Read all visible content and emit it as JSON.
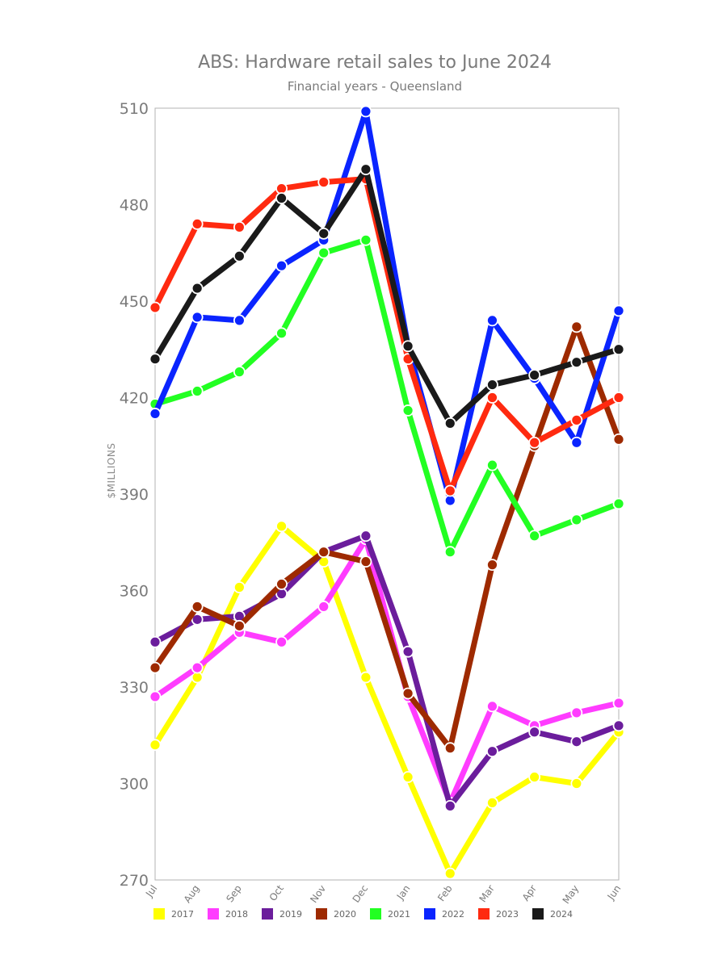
{
  "chart_data": {
    "type": "line",
    "title": "ABS: Hardware retail sales to June 2024",
    "subtitle": "Financial years - Queensland",
    "xlabel": "",
    "ylabel": "$MILLIONS",
    "categories": [
      "Jul",
      "Aug",
      "Sep",
      "Oct",
      "Nov",
      "Dec",
      "Jan",
      "Feb",
      "Mar",
      "Apr",
      "May",
      "Jun"
    ],
    "yticks": [
      270,
      300,
      330,
      360,
      390,
      420,
      450,
      480,
      510
    ],
    "ylim": [
      270,
      510
    ],
    "grid": false,
    "legend_position": "bottom",
    "series": [
      {
        "name": "2017",
        "color": "#ffff00",
        "values": [
          312,
          333,
          361,
          380,
          369,
          333,
          302,
          272,
          294,
          302,
          300,
          316
        ]
      },
      {
        "name": "2018",
        "color": "#ff3cff",
        "values": [
          327,
          336,
          347,
          344,
          355,
          376,
          327,
          294,
          324,
          318,
          322,
          325
        ]
      },
      {
        "name": "2019",
        "color": "#6b1d9c",
        "values": [
          344,
          351,
          352,
          359,
          372,
          377,
          341,
          293,
          310,
          316,
          313,
          318
        ]
      },
      {
        "name": "2020",
        "color": "#9e2a00",
        "values": [
          336,
          355,
          349,
          362,
          372,
          369,
          328,
          311,
          368,
          405,
          442,
          407
        ]
      },
      {
        "name": "2021",
        "color": "#22ff22",
        "values": [
          418,
          422,
          428,
          440,
          465,
          469,
          416,
          372,
          399,
          377,
          382,
          387
        ]
      },
      {
        "name": "2022",
        "color": "#0a24ff",
        "values": [
          415,
          445,
          444,
          461,
          469,
          509,
          436,
          388,
          444,
          426,
          406,
          447
        ]
      },
      {
        "name": "2023",
        "color": "#ff2a10",
        "values": [
          448,
          474,
          473,
          485,
          487,
          488,
          432,
          391,
          420,
          406,
          413,
          420
        ]
      },
      {
        "name": "2024",
        "color": "#1a1a1a",
        "values": [
          432,
          454,
          464,
          482,
          471,
          491,
          436,
          412,
          424,
          427,
          431,
          435
        ]
      }
    ]
  }
}
